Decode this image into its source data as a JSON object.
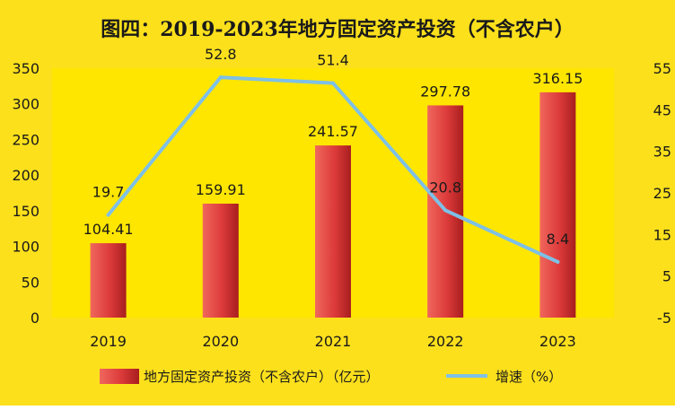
{
  "chart_data": {
    "type": "bar",
    "title": "图四：2019-2023年地方固定资产投资（不含农户）",
    "categories": [
      "2019",
      "2020",
      "2021",
      "2022",
      "2023"
    ],
    "series": [
      {
        "name": "地方固定资产投资（不含农户）（亿元）",
        "type": "bar",
        "axis": "left",
        "values": [
          104.41,
          159.91,
          241.57,
          297.78,
          316.15
        ],
        "labels": [
          "104.41",
          "159.91",
          "241.57",
          "297.78",
          "316.15"
        ]
      },
      {
        "name": "增速（%）",
        "type": "line",
        "axis": "right",
        "values": [
          19.7,
          52.8,
          51.4,
          20.8,
          8.4
        ],
        "labels": [
          "19.7",
          "52.8",
          "51.4",
          "20.8",
          "8.4"
        ]
      }
    ],
    "y_left": {
      "ylim": [
        0,
        350
      ],
      "ticks": [
        "0",
        "50",
        "100",
        "150",
        "200",
        "250",
        "300",
        "350"
      ]
    },
    "y_right": {
      "ylim": [
        -5,
        55
      ],
      "ticks": [
        "-5",
        "5",
        "15",
        "25",
        "35",
        "45",
        "55"
      ]
    },
    "grid": false,
    "legend_position": "bottom",
    "colors": {
      "background": "#fce01c",
      "plot_background": "#ffe600",
      "bar": "#dc3a3a",
      "bar_light": "#f0675c",
      "bar_dark": "#a81e1e",
      "line": "#7ec0e6",
      "text": "#1a1a1a"
    }
  }
}
